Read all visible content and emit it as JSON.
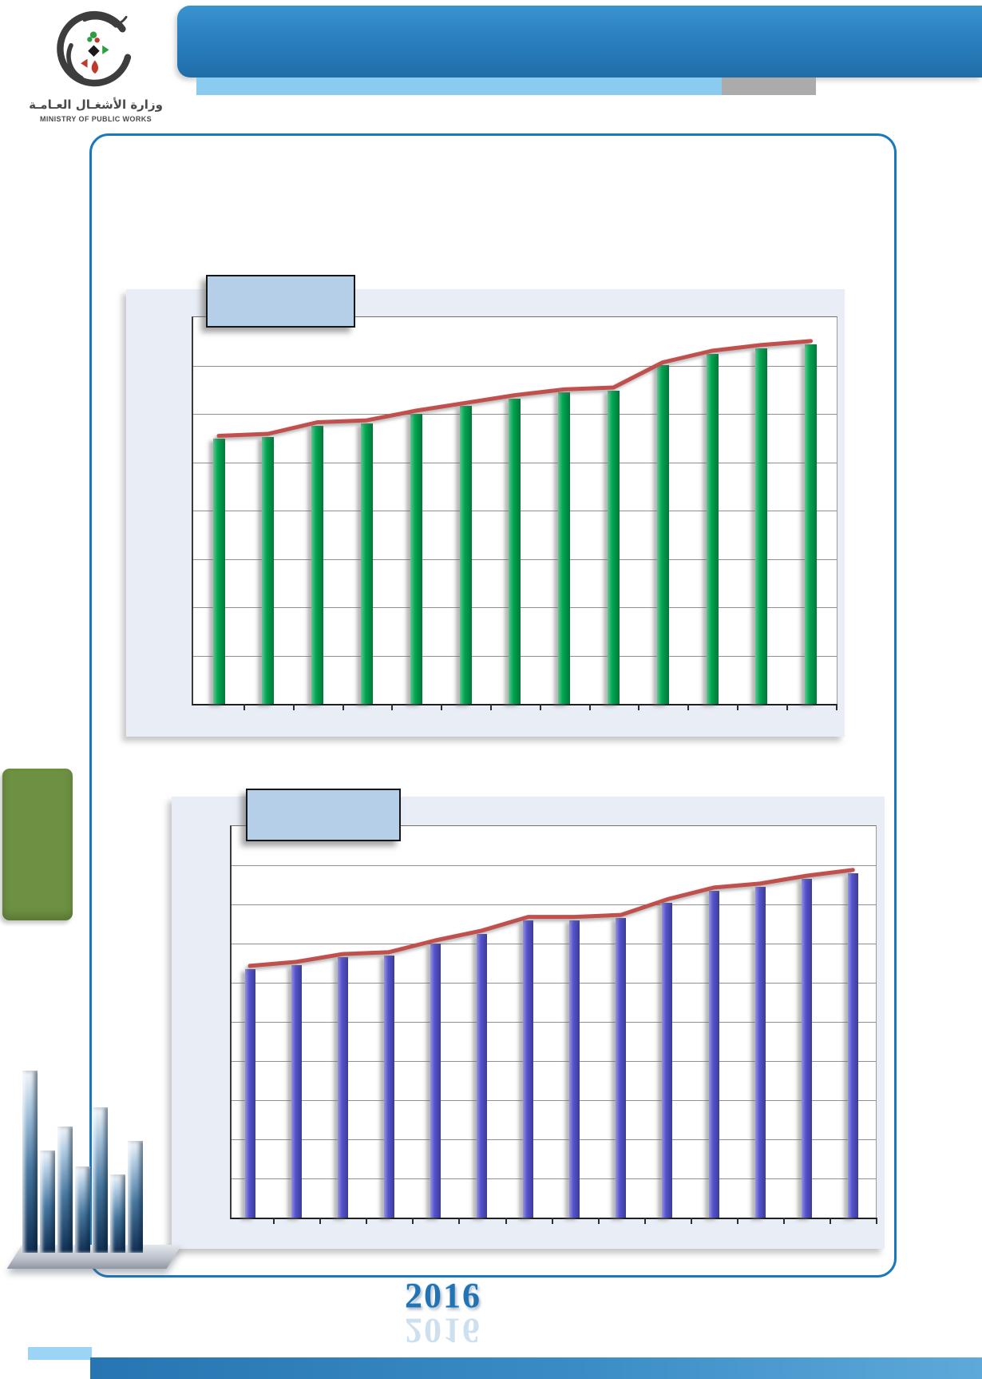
{
  "logo": {
    "arabic": "وزارة الأشغـال العـامـة",
    "english": "MINISTRY OF PUBLIC WORKS"
  },
  "footer": {
    "year": "2016"
  },
  "palette": {
    "header_blue": "#2B80C0",
    "header_strip_light_blue": "#8CCBF0",
    "header_strip_gray": "#ABABAB",
    "frame_border_blue": "#1A78BD",
    "panel_background": "#E9EDF5",
    "title_box_blue": "#B5CFE9",
    "olive_block_green": "#6D9042",
    "footer_bar_blue": "#2775B2"
  },
  "chart_data": [
    {
      "id": "upper-chart",
      "type": "bar",
      "combo": "column-with-line-overlay",
      "title": "",
      "title_box_text": "",
      "x": [
        1,
        2,
        3,
        4,
        5,
        6,
        7,
        8,
        9,
        10,
        11,
        12,
        13
      ],
      "x_labels_visible": false,
      "y_labels_visible": false,
      "units": "estimated % of plot height (chart axes have no visible labels)",
      "ylim": [
        0,
        100
      ],
      "gridline_divisions": 8,
      "legend": "none",
      "series": [
        {
          "name": "columns",
          "type": "column",
          "color": "#00A550",
          "values": [
            68.5,
            69,
            72,
            72.5,
            75,
            77,
            79,
            80.5,
            81,
            87.5,
            90.5,
            92,
            93
          ]
        },
        {
          "name": "trend-line",
          "type": "line",
          "color": "#C0504D",
          "values": [
            68.5,
            69,
            72,
            72.5,
            75,
            77,
            79,
            80.5,
            81,
            87.5,
            90.5,
            92,
            93
          ]
        }
      ]
    },
    {
      "id": "lower-chart",
      "type": "bar",
      "combo": "column-with-line-overlay",
      "title": "",
      "title_box_text": "",
      "x": [
        1,
        2,
        3,
        4,
        5,
        6,
        7,
        8,
        9,
        10,
        11,
        12,
        13,
        14
      ],
      "x_labels_visible": false,
      "y_labels_visible": false,
      "units": "estimated % of plot height (chart axes have no visible labels)",
      "ylim": [
        0,
        100
      ],
      "gridline_divisions": 10,
      "legend": "none",
      "series": [
        {
          "name": "columns",
          "type": "column",
          "color": "#5453CE",
          "values": [
            63.5,
            64.5,
            66.5,
            67,
            70,
            72.5,
            76,
            76,
            76.5,
            80.5,
            83.5,
            84.5,
            86.5,
            88
          ]
        },
        {
          "name": "trend-line",
          "type": "line",
          "color": "#C0504D",
          "values": [
            63.5,
            64.5,
            66.5,
            67,
            70,
            72.5,
            76,
            76,
            76.5,
            80.5,
            83.5,
            84.5,
            86.5,
            88
          ]
        }
      ]
    }
  ]
}
